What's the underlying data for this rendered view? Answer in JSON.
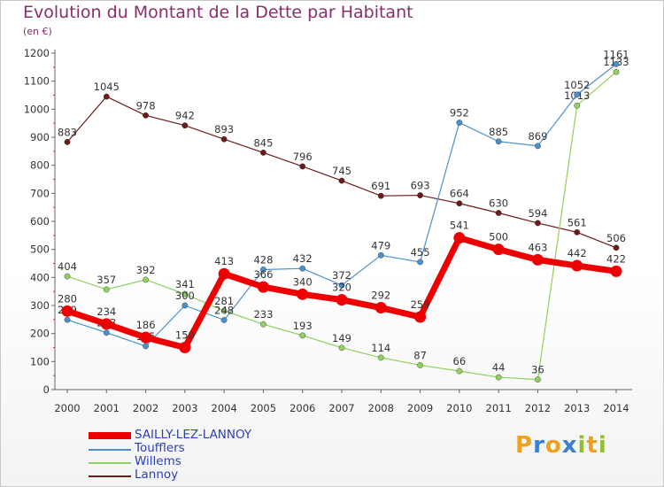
{
  "title": "Evolution du Montant de la Dette par Habitant",
  "unit_label": "(en €)",
  "logo": {
    "letters": [
      "P",
      "r",
      "o",
      "x",
      "i",
      "t",
      "i"
    ],
    "colors": [
      "#f0a020",
      "#3a7fd0",
      "#f0a020",
      "#3a7fd0",
      "#90c030",
      "#f0a020",
      "#90c030"
    ]
  },
  "chart_data": {
    "type": "line",
    "title": "Evolution du Montant de la Dette par Habitant",
    "ylabel": "(en €)",
    "xlabel": "",
    "x": [
      "2000",
      "2001",
      "2002",
      "2003",
      "2004",
      "2005",
      "2006",
      "2007",
      "2008",
      "2009",
      "2010",
      "2011",
      "2012",
      "2013",
      "2014"
    ],
    "ylim": [
      0,
      1200
    ],
    "yticks": [
      0,
      100,
      200,
      300,
      400,
      500,
      600,
      700,
      800,
      900,
      1000,
      1100,
      1200
    ],
    "grid": false,
    "legend_placement": "bottom-left",
    "series": [
      {
        "name": "Lannoy",
        "color": "#6b1a1a",
        "width": 1.2,
        "values": [
          883,
          1045,
          978,
          942,
          893,
          845,
          796,
          745,
          691,
          693,
          664,
          630,
          594,
          561,
          506
        ]
      },
      {
        "name": "Willems",
        "color": "#90d060",
        "width": 1.2,
        "values": [
          404,
          357,
          392,
          341,
          281,
          233,
          193,
          149,
          114,
          87,
          66,
          44,
          36,
          1013,
          1133
        ]
      },
      {
        "name": "Toufflers",
        "color": "#4a90cc",
        "width": 1.2,
        "values": [
          249,
          203,
          155,
          300,
          248,
          428,
          432,
          372,
          479,
          455,
          952,
          885,
          869,
          1052,
          1161
        ]
      },
      {
        "name": "SAILLY-LEZ-LANNOY",
        "color": "#ee0000",
        "width": 7,
        "values": [
          280,
          234,
          186,
          150,
          413,
          366,
          340,
          320,
          292,
          259,
          541,
          500,
          463,
          442,
          422
        ]
      }
    ],
    "legend_order": [
      "SAILLY-LEZ-LANNOY",
      "Toufflers",
      "Willems",
      "Lannoy"
    ]
  }
}
